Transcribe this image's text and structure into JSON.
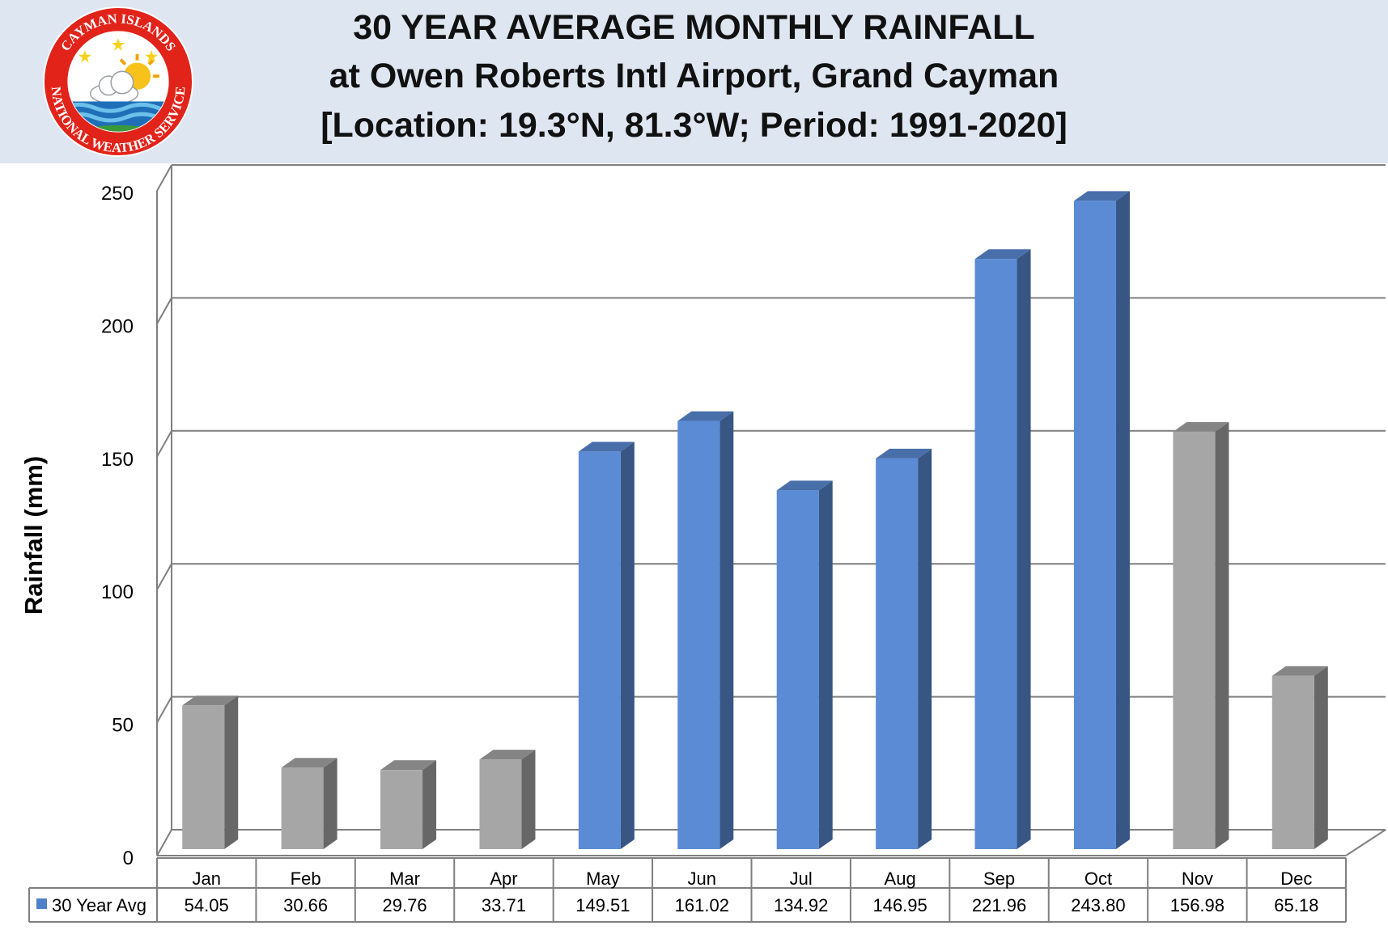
{
  "header": {
    "title_1": "30 YEAR AVERAGE MONTHLY RAINFALL",
    "title_2": "at Owen Roberts Intl Airport, Grand Cayman",
    "title_3": "[Location: 19.3°N, 81.3°W; Period:  1991-2020]",
    "background": "#dee6f1"
  },
  "logo": {
    "top_text": "CAYMAN ISLANDS",
    "bottom_text": "NATIONAL WEATHER SERVICE",
    "ring_color": "#e2231a"
  },
  "chart_data": {
    "type": "bar",
    "ylabel": "Rainfall (mm)",
    "xlabel": "",
    "ylim": [
      0,
      250
    ],
    "yticks": [
      "0",
      "50",
      "100",
      "150",
      "200",
      "250"
    ],
    "grid": true,
    "categories": [
      "Jan",
      "Feb",
      "Mar",
      "Apr",
      "May",
      "Jun",
      "Jul",
      "Aug",
      "Sep",
      "Oct",
      "Nov",
      "Dec"
    ],
    "series": [
      {
        "name": "30 Year Avg",
        "values": [
          54.05,
          30.66,
          29.76,
          33.71,
          149.51,
          161.02,
          134.92,
          146.95,
          221.96,
          243.8,
          156.98,
          65.18
        ],
        "value_labels": [
          "54.05",
          "30.66",
          "29.76",
          "33.71",
          "149.51",
          "161.02",
          "134.92",
          "146.95",
          "221.96",
          "243.80",
          "156.98",
          "65.18"
        ],
        "bar_colors": [
          "#a6a6a6",
          "#a6a6a6",
          "#a6a6a6",
          "#a6a6a6",
          "#5b8bd5",
          "#5b8bd5",
          "#5b8bd5",
          "#5b8bd5",
          "#5b8bd5",
          "#5b8bd5",
          "#a6a6a6",
          "#a6a6a6"
        ]
      }
    ],
    "legend_placement": "data-table",
    "legend_key_color": "#4f81c8"
  }
}
